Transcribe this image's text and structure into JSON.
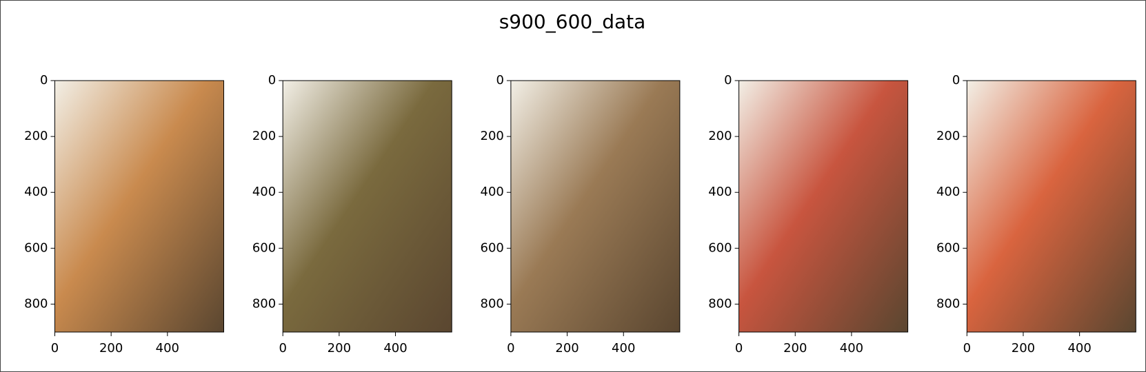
{
  "figure_title": "s900_600_data",
  "chart_data": [
    {
      "type": "image",
      "color": "#c98a4e",
      "xlim": [
        0,
        600
      ],
      "ylim": [
        900,
        0
      ],
      "xticks": [
        0,
        200,
        400
      ],
      "yticks": [
        0,
        200,
        400,
        600,
        800
      ]
    },
    {
      "type": "image",
      "color": "#7a6a3e",
      "xlim": [
        0,
        600
      ],
      "ylim": [
        900,
        0
      ],
      "xticks": [
        0,
        200,
        400
      ],
      "yticks": [
        0,
        200,
        400,
        600,
        800
      ]
    },
    {
      "type": "image",
      "color": "#9a7a55",
      "xlim": [
        0,
        600
      ],
      "ylim": [
        900,
        0
      ],
      "xticks": [
        0,
        200,
        400
      ],
      "yticks": [
        0,
        200,
        400,
        600,
        800
      ]
    },
    {
      "type": "image",
      "color": "#c8553f",
      "xlim": [
        0,
        600
      ],
      "ylim": [
        900,
        0
      ],
      "xticks": [
        0,
        200,
        400
      ],
      "yticks": [
        0,
        200,
        400,
        600,
        800
      ]
    },
    {
      "type": "image",
      "color": "#d9643f",
      "xlim": [
        0,
        600
      ],
      "ylim": [
        900,
        0
      ],
      "xticks": [
        0,
        200,
        400
      ],
      "yticks": [
        0,
        200,
        400,
        600,
        800
      ]
    }
  ]
}
